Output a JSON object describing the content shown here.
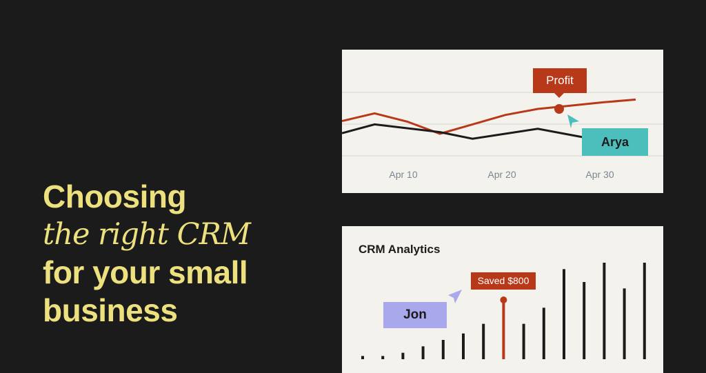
{
  "headline": {
    "line1": "Choosing",
    "line2": "the right CRM",
    "line3": "for your small",
    "line4": "business"
  },
  "line_card": {
    "callout_label": "Profit",
    "user_label": "Arya",
    "x_ticks": [
      "Apr 10",
      "Apr 20",
      "Apr 30"
    ]
  },
  "bar_card": {
    "title": "CRM Analytics",
    "callout_label": "Saved $800",
    "user_label": "Jon"
  },
  "chart_data": [
    {
      "type": "line",
      "x": [
        "",
        "Apr 10",
        "",
        "",
        "Apr 20",
        "",
        "",
        "Apr 30",
        "",
        ""
      ],
      "series": [
        {
          "name": "Profit",
          "color": "#b8391a",
          "values": [
            0.58,
            0.72,
            0.57,
            0.35,
            0.52,
            0.69,
            0.8,
            0.86,
            0.92,
            0.97
          ]
        },
        {
          "name": "",
          "color": "#1c1b1b",
          "values": [
            0.36,
            0.52,
            0.45,
            0.38,
            0.26,
            0.35,
            0.44,
            0.33,
            0.22,
            0.1
          ]
        }
      ],
      "grid": true,
      "colors": {
        "profit": "#b8391a",
        "other": "#1c1b1b",
        "arya": "#4cbfbd"
      }
    },
    {
      "type": "bar",
      "title": "CRM Analytics",
      "values": [
        1,
        1,
        2,
        4,
        6,
        8,
        11,
        11,
        11,
        16,
        28,
        24,
        30,
        22,
        30
      ],
      "highlight_index": 7,
      "highlight_color": "#b8391a",
      "bar_color": "#1c1b1b"
    }
  ]
}
